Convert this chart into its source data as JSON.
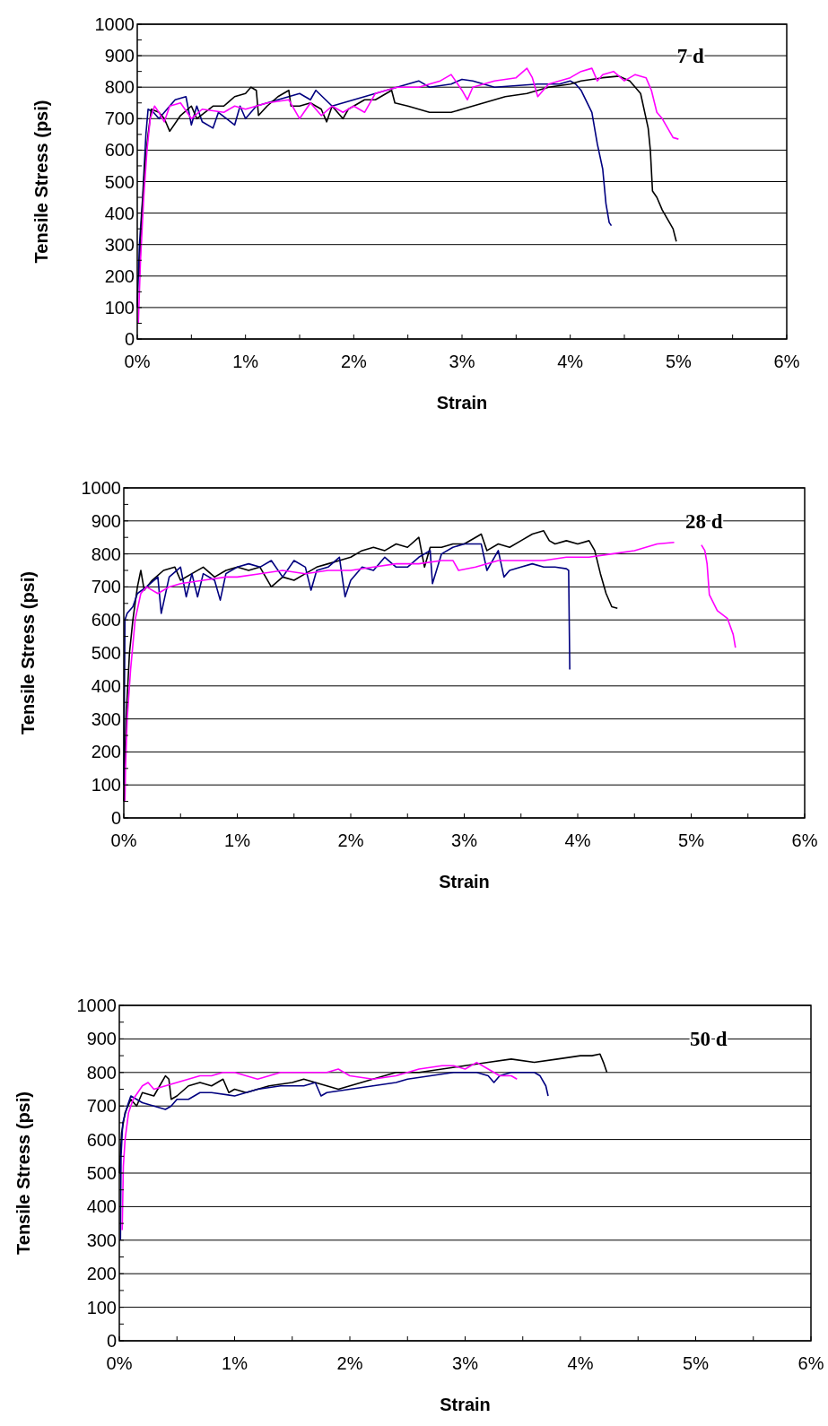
{
  "chart_data": [
    {
      "type": "line",
      "xlabel": "Strain",
      "ylabel": "Tensile Stress (psi)",
      "annotations": [
        "7 d"
      ],
      "grid": "y",
      "xlim": [
        0,
        6
      ],
      "ylim": [
        0,
        1000
      ],
      "xticks": [
        {
          "value": 0,
          "label": "0%"
        },
        {
          "value": 0.5,
          "label": null
        },
        {
          "value": 1,
          "label": "1%"
        },
        {
          "value": 1.5,
          "label": null
        },
        {
          "value": 2,
          "label": "2%"
        },
        {
          "value": 2.5,
          "label": null
        },
        {
          "value": 3,
          "label": "3%"
        },
        {
          "value": 3.5,
          "label": null
        },
        {
          "value": 4,
          "label": "4%"
        },
        {
          "value": 4.5,
          "label": null
        },
        {
          "value": 5,
          "label": "5%"
        },
        {
          "value": 5.5,
          "label": null
        },
        {
          "value": 6,
          "label": "6%"
        }
      ],
      "yticks": [
        0,
        {
          "value": 50,
          "label": null
        },
        100,
        {
          "value": 150,
          "label": null
        },
        200,
        {
          "value": 250,
          "label": null
        },
        300,
        {
          "value": 350,
          "label": null
        },
        400,
        {
          "value": 450,
          "label": null
        },
        500,
        {
          "value": 550,
          "label": null
        },
        600,
        {
          "value": 650,
          "label": null
        },
        700,
        {
          "value": 750,
          "label": null
        },
        800,
        {
          "value": 850,
          "label": null
        },
        900,
        {
          "value": 950,
          "label": null
        },
        1000
      ],
      "series": [
        {
          "color": "#000080",
          "x": [
            0,
            0.02,
            0.05,
            0.08,
            0.1,
            0.15,
            0.2,
            0.3,
            0.35,
            0.45,
            0.5,
            0.55,
            0.6,
            0.7,
            0.75,
            0.9,
            0.95,
            1.0,
            1.1,
            1.3,
            1.5,
            1.6,
            1.65,
            1.8,
            2.0,
            2.1,
            2.3,
            2.4,
            2.5,
            2.6,
            2.7,
            2.9,
            3.0,
            3.1,
            3.3,
            3.5,
            3.7,
            3.9,
            4.0,
            4.05,
            4.1,
            4.2,
            4.25,
            4.3,
            4.33,
            4.36,
            4.38
          ],
          "values": [
            100,
            300,
            450,
            650,
            730,
            720,
            700,
            740,
            760,
            770,
            680,
            740,
            690,
            670,
            720,
            680,
            740,
            700,
            740,
            760,
            780,
            760,
            790,
            740,
            760,
            770,
            790,
            800,
            810,
            820,
            800,
            810,
            825,
            820,
            800,
            805,
            810,
            810,
            820,
            810,
            790,
            720,
            620,
            540,
            430,
            370,
            360
          ]
        },
        {
          "color": "#000000",
          "x": [
            0.02,
            0.04,
            0.07,
            0.1,
            0.13,
            0.2,
            0.25,
            0.3,
            0.4,
            0.5,
            0.55,
            0.7,
            0.8,
            0.9,
            1.0,
            1.05,
            1.1,
            1.12,
            1.2,
            1.3,
            1.4,
            1.42,
            1.5,
            1.6,
            1.7,
            1.75,
            1.8,
            1.9,
            1.95,
            2.0,
            2.1,
            2.2,
            2.3,
            2.35,
            2.38,
            2.5,
            2.6,
            2.7,
            2.9,
            3.0,
            3.2,
            3.4,
            3.6,
            3.8,
            4.0,
            4.1,
            4.3,
            4.45,
            4.55,
            4.65,
            4.72,
            4.74,
            4.76,
            4.8,
            4.85,
            4.9,
            4.95,
            4.98
          ],
          "values": [
            200,
            380,
            550,
            650,
            730,
            720,
            700,
            660,
            710,
            740,
            700,
            740,
            740,
            770,
            780,
            800,
            790,
            710,
            740,
            770,
            790,
            740,
            740,
            750,
            730,
            690,
            740,
            700,
            730,
            740,
            760,
            760,
            780,
            790,
            750,
            740,
            730,
            720,
            720,
            730,
            750,
            770,
            780,
            800,
            810,
            820,
            830,
            835,
            820,
            780,
            670,
            600,
            470,
            450,
            410,
            380,
            350,
            310
          ]
        },
        {
          "color": "#ff00ff",
          "x": [
            0.01,
            0.03,
            0.06,
            0.09,
            0.12,
            0.16,
            0.2,
            0.25,
            0.3,
            0.4,
            0.5,
            0.6,
            0.8,
            0.9,
            1.0,
            1.2,
            1.4,
            1.5,
            1.6,
            1.7,
            1.8,
            1.9,
            2.0,
            2.1,
            2.2,
            2.4,
            2.6,
            2.8,
            2.9,
            3.0,
            3.05,
            3.1,
            3.3,
            3.5,
            3.6,
            3.65,
            3.7,
            3.8,
            3.9,
            4.0,
            4.1,
            4.2,
            4.25,
            4.3,
            4.4,
            4.5,
            4.6,
            4.7,
            4.75,
            4.8,
            4.85,
            4.9,
            4.95,
            5.0
          ],
          "values": [
            50,
            250,
            450,
            600,
            700,
            740,
            720,
            690,
            740,
            750,
            700,
            730,
            720,
            740,
            730,
            750,
            760,
            700,
            750,
            710,
            740,
            720,
            740,
            720,
            780,
            800,
            800,
            820,
            840,
            790,
            760,
            800,
            820,
            830,
            860,
            830,
            770,
            810,
            820,
            830,
            850,
            860,
            820,
            840,
            850,
            820,
            840,
            830,
            790,
            720,
            700,
            670,
            640,
            635
          ]
        }
      ]
    },
    {
      "type": "line",
      "xlabel": "Strain",
      "ylabel": "Tensile Stress (psi)",
      "annotations": [
        "28 d"
      ],
      "grid": "y",
      "xlim": [
        0,
        6
      ],
      "ylim": [
        0,
        1000
      ],
      "xticks": [
        {
          "value": 0,
          "label": "0%"
        },
        {
          "value": 0.5,
          "label": null
        },
        {
          "value": 1,
          "label": "1%"
        },
        {
          "value": 1.5,
          "label": null
        },
        {
          "value": 2,
          "label": "2%"
        },
        {
          "value": 2.5,
          "label": null
        },
        {
          "value": 3,
          "label": "3%"
        },
        {
          "value": 3.5,
          "label": null
        },
        {
          "value": 4,
          "label": "4%"
        },
        {
          "value": 4.5,
          "label": null
        },
        {
          "value": 5,
          "label": "5%"
        },
        {
          "value": 5.5,
          "label": null
        },
        {
          "value": 6,
          "label": "6%"
        }
      ],
      "yticks": [
        0,
        {
          "value": 50,
          "label": null
        },
        100,
        {
          "value": 150,
          "label": null
        },
        200,
        {
          "value": 250,
          "label": null
        },
        300,
        {
          "value": 350,
          "label": null
        },
        400,
        {
          "value": 450,
          "label": null
        },
        500,
        {
          "value": 550,
          "label": null
        },
        600,
        {
          "value": 650,
          "label": null
        },
        700,
        {
          "value": 750,
          "label": null
        },
        800,
        {
          "value": 850,
          "label": null
        },
        900,
        {
          "value": 950,
          "label": null
        },
        1000
      ],
      "series": [
        {
          "color": "#000000",
          "x": [
            0,
            0.02,
            0.05,
            0.08,
            0.12,
            0.15,
            0.18,
            0.25,
            0.35,
            0.45,
            0.5,
            0.6,
            0.7,
            0.8,
            0.9,
            1.0,
            1.1,
            1.2,
            1.3,
            1.4,
            1.5,
            1.6,
            1.7,
            1.8,
            1.9,
            2.0,
            2.1,
            2.2,
            2.3,
            2.4,
            2.5,
            2.6,
            2.65,
            2.7,
            2.8,
            2.9,
            3.0,
            3.1,
            3.15,
            3.2,
            3.3,
            3.4,
            3.5,
            3.6,
            3.7,
            3.75,
            3.8,
            3.9,
            4.0,
            4.1,
            4.15,
            4.2,
            4.25,
            4.3,
            4.35
          ],
          "values": [
            50,
            300,
            500,
            600,
            700,
            750,
            690,
            720,
            750,
            760,
            720,
            740,
            760,
            730,
            750,
            760,
            750,
            760,
            700,
            730,
            720,
            740,
            760,
            770,
            780,
            790,
            810,
            820,
            810,
            830,
            820,
            850,
            760,
            820,
            820,
            830,
            830,
            850,
            860,
            810,
            830,
            820,
            840,
            860,
            870,
            840,
            830,
            840,
            830,
            840,
            810,
            740,
            680,
            640,
            635
          ]
        },
        {
          "color": "#000080",
          "x": [
            0,
            0.01,
            0.03,
            0.08,
            0.12,
            0.2,
            0.3,
            0.33,
            0.4,
            0.5,
            0.55,
            0.6,
            0.65,
            0.7,
            0.8,
            0.85,
            0.9,
            1.0,
            1.1,
            1.2,
            1.3,
            1.4,
            1.5,
            1.6,
            1.65,
            1.7,
            1.8,
            1.9,
            1.95,
            2.0,
            2.1,
            2.2,
            2.3,
            2.4,
            2.5,
            2.6,
            2.7,
            2.72,
            2.8,
            2.9,
            3.0,
            3.15,
            3.2,
            3.3,
            3.35,
            3.4,
            3.5,
            3.6,
            3.7,
            3.8,
            3.9,
            3.92,
            3.93
          ],
          "values": [
            100,
            600,
            620,
            640,
            680,
            700,
            730,
            620,
            730,
            760,
            670,
            740,
            670,
            740,
            720,
            660,
            740,
            760,
            770,
            760,
            780,
            730,
            780,
            760,
            690,
            750,
            760,
            790,
            670,
            720,
            760,
            750,
            790,
            760,
            760,
            790,
            810,
            710,
            800,
            820,
            830,
            830,
            750,
            810,
            730,
            750,
            760,
            770,
            760,
            760,
            755,
            750,
            450
          ]
        },
        {
          "color": "#ff00ff",
          "x": [
            0.01,
            0.015,
            0.03,
            0.06,
            0.1,
            0.15,
            0.2,
            0.3,
            0.4,
            0.5,
            0.7,
            0.9,
            1.0,
            1.2,
            1.4,
            1.6,
            1.8,
            2.0,
            2.2,
            2.4,
            2.6,
            2.8,
            2.9,
            2.95,
            3.1,
            3.3,
            3.5,
            3.7,
            3.9,
            4.1,
            4.3,
            4.5,
            4.7,
            4.85,
            4.95,
            5.09,
            5.12,
            5.14,
            5.16,
            5.23,
            5.32,
            5.37,
            5.39
          ],
          "values": [
            50,
            150,
            300,
            450,
            600,
            680,
            700,
            680,
            700,
            710,
            720,
            730,
            730,
            740,
            750,
            740,
            750,
            750,
            760,
            770,
            770,
            780,
            780,
            750,
            760,
            780,
            780,
            780,
            790,
            790,
            800,
            810,
            830,
            835,
            null,
            827,
            810,
            770,
            676,
            628,
            604,
            556,
            516
          ]
        }
      ]
    },
    {
      "type": "line",
      "xlabel": "Strain",
      "ylabel": "Tensile Stress (psi)",
      "annotations": [
        "50 d"
      ],
      "grid": "y",
      "xlim": [
        0,
        6
      ],
      "ylim": [
        0,
        1000
      ],
      "xticks": [
        {
          "value": 0,
          "label": "0%"
        },
        {
          "value": 0.5,
          "label": null
        },
        {
          "value": 1,
          "label": "1%"
        },
        {
          "value": 1.5,
          "label": null
        },
        {
          "value": 2,
          "label": "2%"
        },
        {
          "value": 2.5,
          "label": null
        },
        {
          "value": 3,
          "label": "3%"
        },
        {
          "value": 3.5,
          "label": null
        },
        {
          "value": 4,
          "label": "4%"
        },
        {
          "value": 4.5,
          "label": null
        },
        {
          "value": 5,
          "label": "5%"
        },
        {
          "value": 5.5,
          "label": null
        },
        {
          "value": 6,
          "label": "6%"
        }
      ],
      "yticks": [
        0,
        {
          "value": 50,
          "label": null
        },
        100,
        {
          "value": 150,
          "label": null
        },
        200,
        {
          "value": 250,
          "label": null
        },
        300,
        {
          "value": 350,
          "label": null
        },
        400,
        {
          "value": 450,
          "label": null
        },
        500,
        {
          "value": 550,
          "label": null
        },
        600,
        {
          "value": 650,
          "label": null
        },
        700,
        {
          "value": 750,
          "label": null
        },
        800,
        {
          "value": 850,
          "label": null
        },
        900,
        {
          "value": 950,
          "label": null
        },
        1000
      ],
      "series": [
        {
          "color": "#000000",
          "x": [
            0,
            0.02,
            0.05,
            0.1,
            0.15,
            0.2,
            0.3,
            0.35,
            0.4,
            0.43,
            0.45,
            0.5,
            0.6,
            0.7,
            0.8,
            0.9,
            0.95,
            1.0,
            1.1,
            1.2,
            1.3,
            1.5,
            1.6,
            1.7,
            1.8,
            1.9,
            2.0,
            2.2,
            2.4,
            2.6,
            2.8,
            3.0,
            3.2,
            3.4,
            3.6,
            3.8,
            4.0,
            4.1,
            4.17,
            4.2,
            4.23
          ],
          "values": [
            500,
            620,
            680,
            720,
            700,
            740,
            730,
            760,
            790,
            780,
            720,
            730,
            760,
            770,
            760,
            780,
            740,
            750,
            740,
            750,
            760,
            770,
            780,
            770,
            760,
            750,
            760,
            780,
            800,
            800,
            810,
            820,
            830,
            840,
            830,
            840,
            850,
            850,
            855,
            830,
            800
          ]
        },
        {
          "color": "#000080",
          "x": [
            0.01,
            0.015,
            0.03,
            0.07,
            0.1,
            0.2,
            0.3,
            0.4,
            0.45,
            0.5,
            0.6,
            0.7,
            0.8,
            1.0,
            1.2,
            1.4,
            1.6,
            1.7,
            1.75,
            1.8,
            2.0,
            2.2,
            2.4,
            2.5,
            2.7,
            2.9,
            3.1,
            3.2,
            3.25,
            3.3,
            3.4,
            3.5,
            3.6,
            3.65,
            3.7,
            3.72
          ],
          "values": [
            300,
            550,
            650,
            700,
            730,
            710,
            700,
            690,
            700,
            720,
            720,
            740,
            740,
            730,
            750,
            760,
            760,
            770,
            730,
            740,
            750,
            760,
            770,
            780,
            790,
            800,
            800,
            790,
            770,
            790,
            800,
            800,
            800,
            790,
            760,
            730
          ]
        },
        {
          "color": "#ff00ff",
          "x": [
            0.025,
            0.035,
            0.05,
            0.08,
            0.12,
            0.2,
            0.25,
            0.3,
            0.4,
            0.5,
            0.6,
            0.7,
            0.8,
            0.9,
            1.0,
            1.1,
            1.2,
            1.3,
            1.4,
            1.6,
            1.8,
            1.9,
            2.0,
            2.2,
            2.4,
            2.6,
            2.8,
            2.9,
            3.0,
            3.1,
            3.2,
            3.3,
            3.4,
            3.45
          ],
          "values": [
            330,
            520,
            600,
            680,
            720,
            760,
            770,
            750,
            760,
            770,
            780,
            790,
            790,
            800,
            800,
            790,
            780,
            790,
            800,
            800,
            800,
            810,
            790,
            780,
            790,
            810,
            820,
            820,
            810,
            830,
            810,
            790,
            790,
            780
          ]
        }
      ]
    }
  ]
}
